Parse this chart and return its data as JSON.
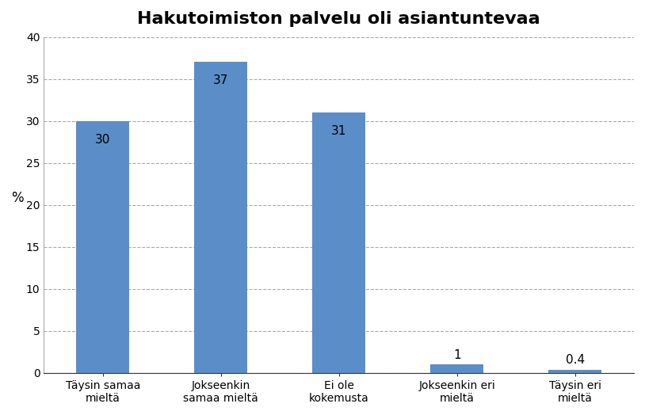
{
  "title": "Hakutoimiston palvelu oli asiantuntevaa",
  "categories": [
    "Täysin samaa\nmieltä",
    "Jokseenkin\nsamaa mieltä",
    "Ei ole\nkokemusta",
    "Jokseenkin eri\nmieltä",
    "Täysin eri\nmieltä"
  ],
  "values": [
    30,
    37,
    31,
    1,
    0.4
  ],
  "bar_color": "#5b8dc8",
  "ylabel": "%",
  "ylim": [
    0,
    40
  ],
  "yticks": [
    0,
    5,
    10,
    15,
    20,
    25,
    30,
    35,
    40
  ],
  "label_values": [
    "30",
    "37",
    "31",
    "1",
    "0.4"
  ],
  "background_color": "#ffffff",
  "title_fontsize": 16,
  "tick_fontsize": 10,
  "label_fontsize": 11,
  "ylabel_fontsize": 12,
  "bar_width": 0.45,
  "figsize": [
    8.14,
    5.24
  ],
  "dpi": 100
}
